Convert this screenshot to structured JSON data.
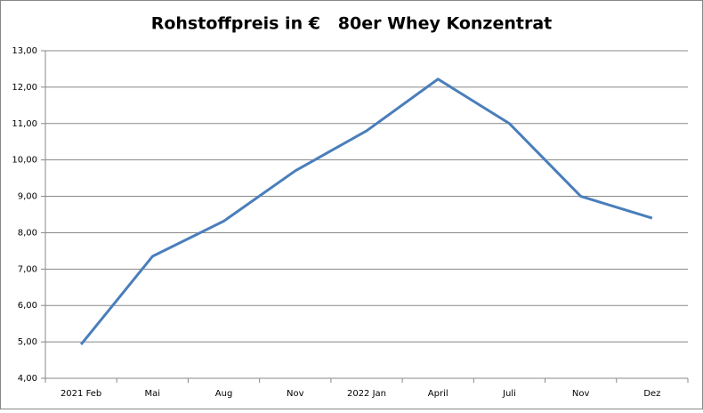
{
  "chart_data": {
    "type": "line",
    "title": "Rohstoffpreis in €   80er Whey Konzentrat",
    "categories": [
      "2021 Feb",
      "Mai",
      "Aug",
      "Nov",
      "2022 Jan",
      "April",
      "Juli",
      "Nov",
      "Dez"
    ],
    "values": [
      4.93,
      7.35,
      8.32,
      9.7,
      10.8,
      12.22,
      11.0,
      9.0,
      8.4
    ],
    "color": "#4a7ebb",
    "ylim": [
      4,
      13
    ],
    "yticks": [
      {
        "value": 4,
        "label": "4,00"
      },
      {
        "value": 5,
        "label": "5,00"
      },
      {
        "value": 6,
        "label": "6,00"
      },
      {
        "value": 7,
        "label": "7,00"
      },
      {
        "value": 8,
        "label": "8,00"
      },
      {
        "value": 9,
        "label": "9,00"
      },
      {
        "value": 10,
        "label": "10,00"
      },
      {
        "value": 11,
        "label": "11,00"
      },
      {
        "value": 12,
        "label": "12,00"
      },
      {
        "value": 13,
        "label": "13,00"
      }
    ],
    "grid": true
  }
}
